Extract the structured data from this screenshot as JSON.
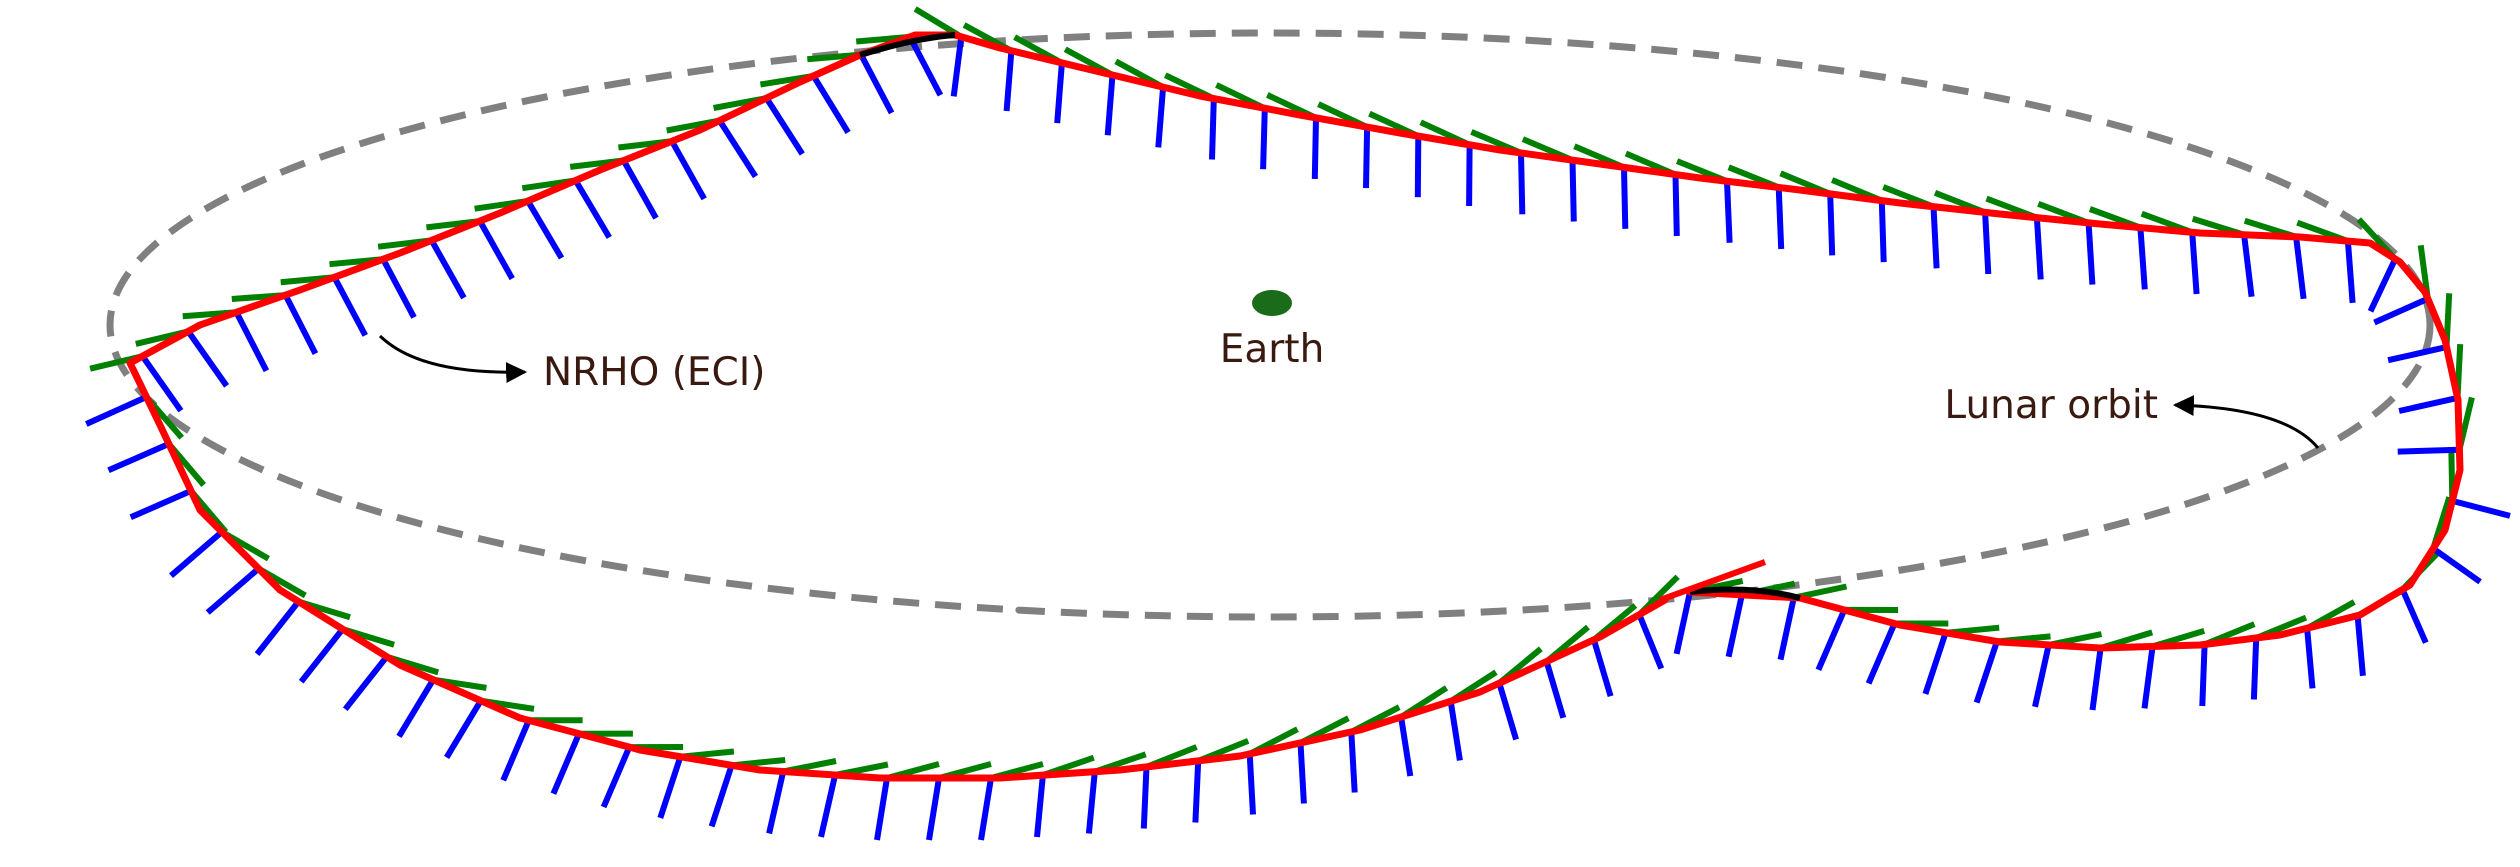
{
  "labels": {
    "earth": "Earth",
    "nrho": "NRHO (ECI)",
    "lunar_orbit": "Lunar orbit"
  },
  "colors": {
    "trajectory": "#ff0000",
    "coast_segment": "#000000",
    "axis_green": "#008000",
    "axis_blue": "#0000ff",
    "lunar_orbit": "#808080",
    "earth": "#1a6b1a",
    "text": "#3a1a10"
  },
  "icons": {
    "earth": "earth-marker",
    "arrow": "annotation-arrow"
  }
}
